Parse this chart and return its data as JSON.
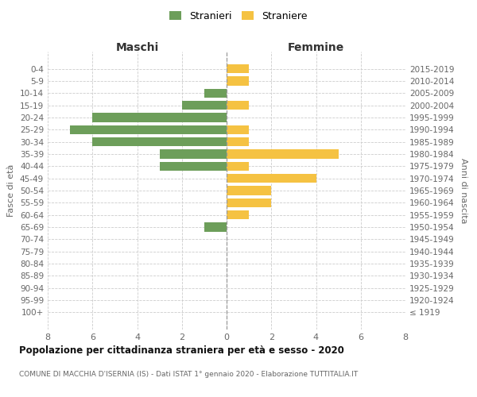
{
  "age_groups": [
    "100+",
    "95-99",
    "90-94",
    "85-89",
    "80-84",
    "75-79",
    "70-74",
    "65-69",
    "60-64",
    "55-59",
    "50-54",
    "45-49",
    "40-44",
    "35-39",
    "30-34",
    "25-29",
    "20-24",
    "15-19",
    "10-14",
    "5-9",
    "0-4"
  ],
  "birth_years": [
    "≤ 1919",
    "1920-1924",
    "1925-1929",
    "1930-1934",
    "1935-1939",
    "1940-1944",
    "1945-1949",
    "1950-1954",
    "1955-1959",
    "1960-1964",
    "1965-1969",
    "1970-1974",
    "1975-1979",
    "1980-1984",
    "1985-1989",
    "1990-1994",
    "1995-1999",
    "2000-2004",
    "2005-2009",
    "2010-2014",
    "2015-2019"
  ],
  "maschi": [
    0,
    0,
    0,
    0,
    0,
    0,
    0,
    1,
    0,
    0,
    0,
    0,
    3,
    3,
    6,
    7,
    6,
    2,
    1,
    0,
    0
  ],
  "femmine": [
    0,
    0,
    0,
    0,
    0,
    0,
    0,
    0,
    1,
    2,
    2,
    4,
    1,
    5,
    1,
    1,
    0,
    1,
    0,
    1,
    1
  ],
  "maschi_color": "#6d9e5a",
  "femmine_color": "#f5c242",
  "background_color": "#ffffff",
  "grid_color": "#cccccc",
  "title": "Popolazione per cittadinanza straniera per età e sesso - 2020",
  "subtitle": "COMUNE DI MACCHIA D'ISERNIA (IS) - Dati ISTAT 1° gennaio 2020 - Elaborazione TUTTITALIA.IT",
  "ylabel_left": "Fasce di età",
  "ylabel_right": "Anni di nascita",
  "xlabel_maschi": "Maschi",
  "xlabel_femmine": "Femmine",
  "legend_maschi": "Stranieri",
  "legend_femmine": "Straniere",
  "xlim": 8
}
